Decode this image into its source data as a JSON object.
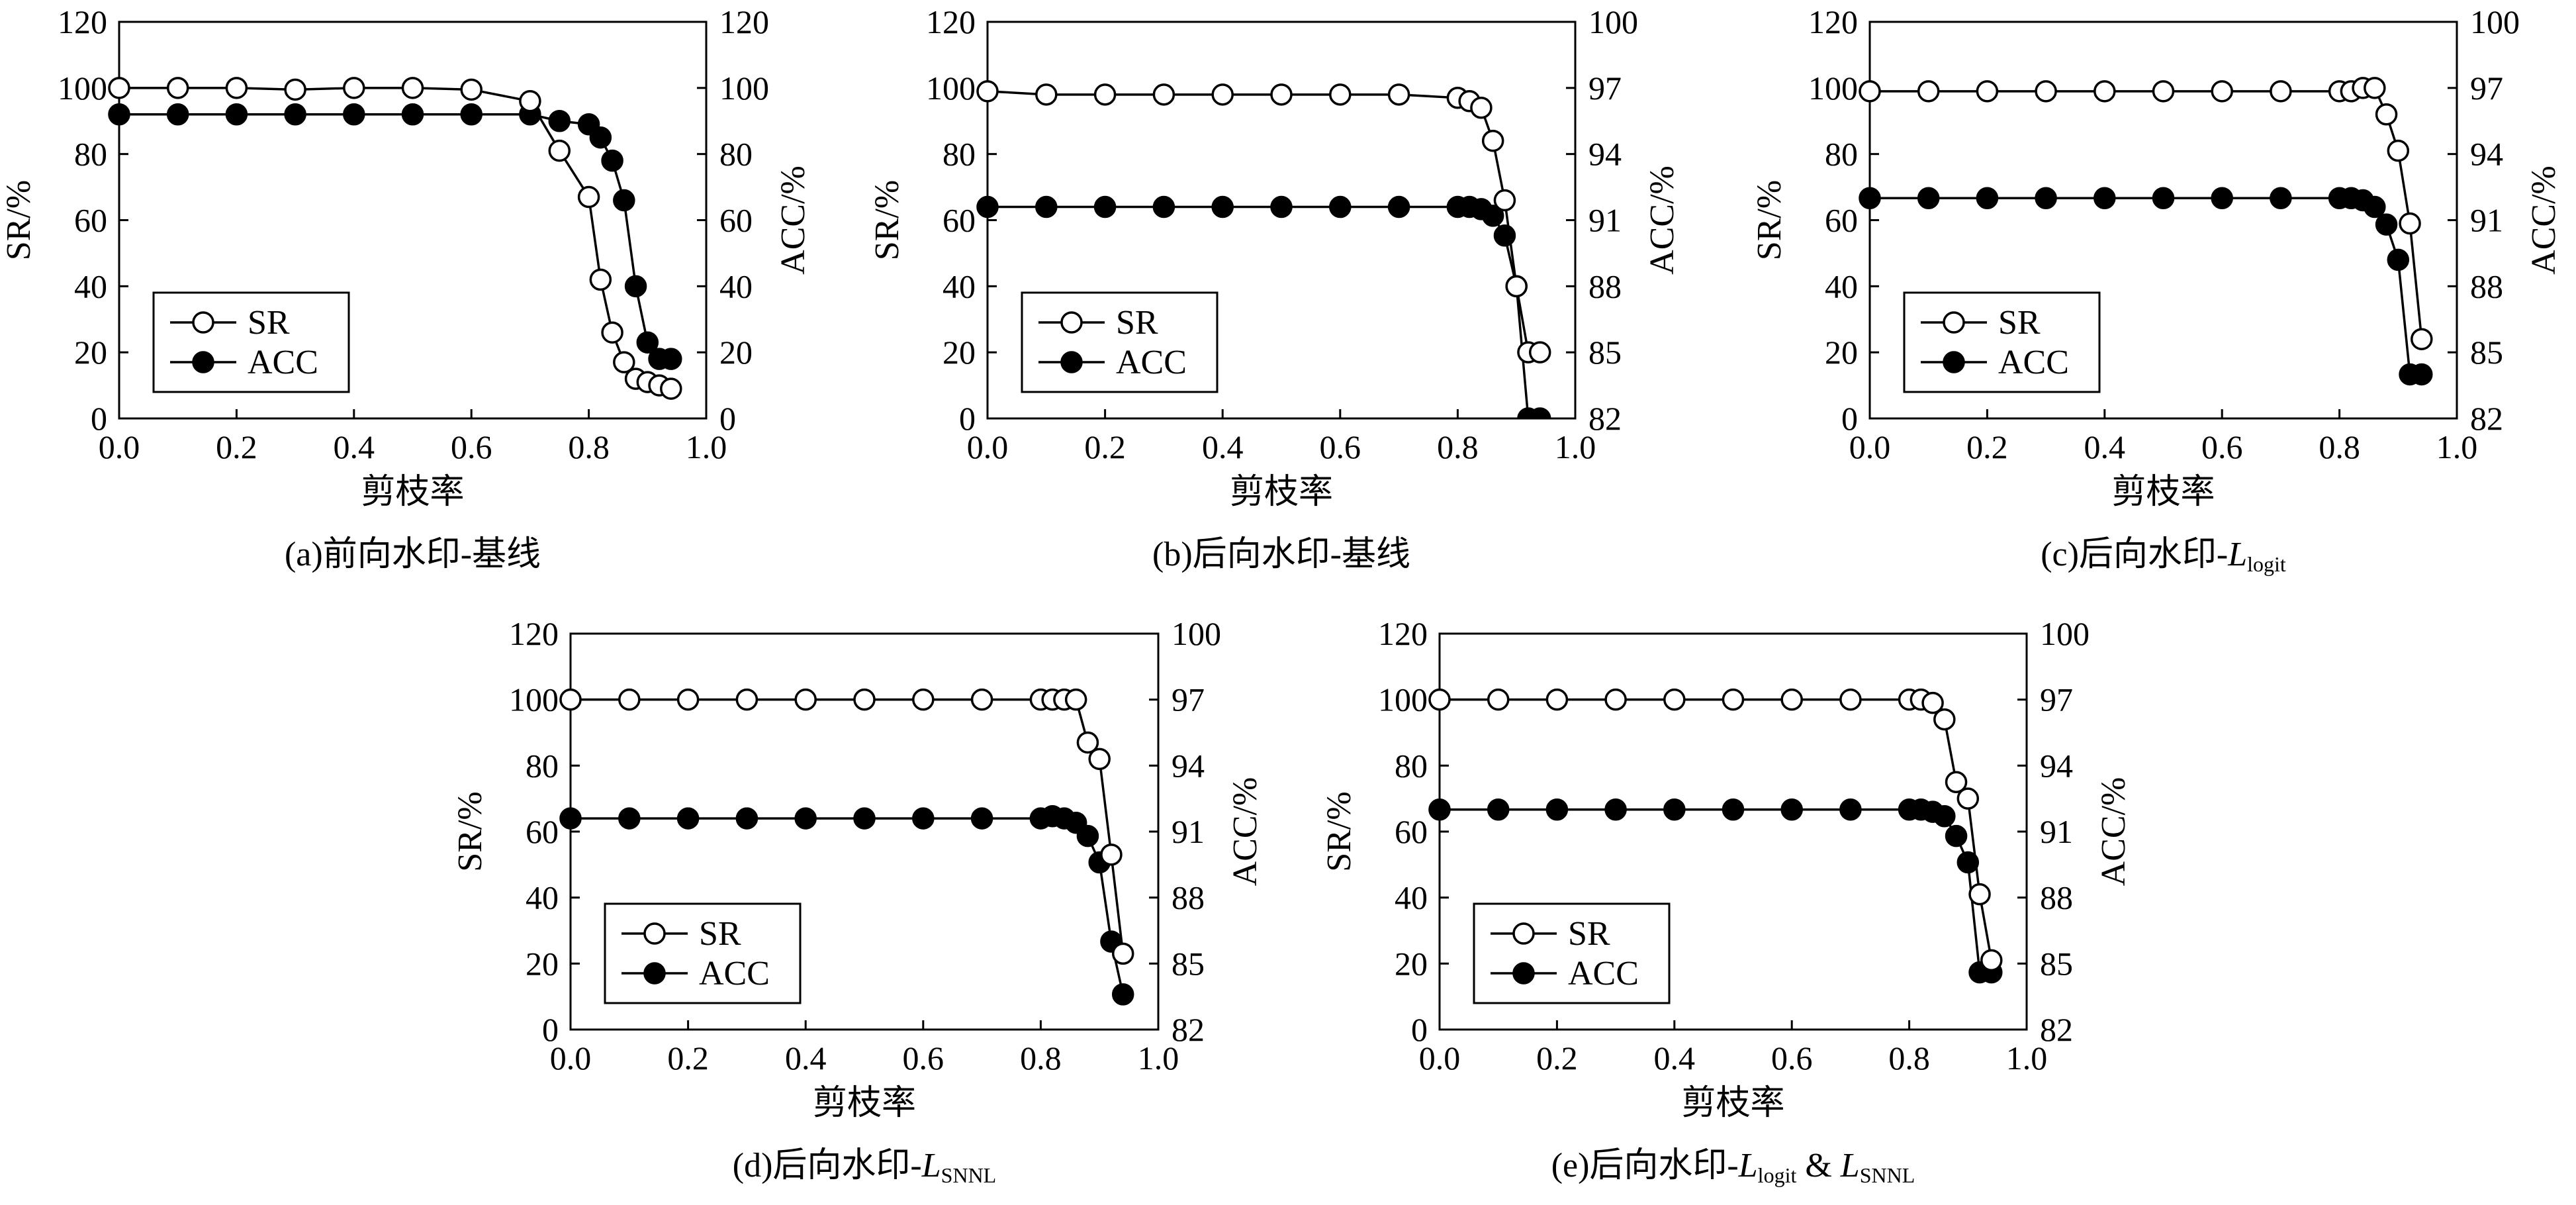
{
  "chart_data": [
    {
      "type": "line",
      "caption": {
        "main": "(a)前向水印-基线",
        "italic": "",
        "sub": "",
        "italic2": "",
        "sub2": ""
      },
      "xlabel": "剪枝率",
      "ylabel_left": "SR/%",
      "ylabel_right": "ACC/%",
      "xlim": [
        0.0,
        1.0
      ],
      "xticks": [
        "0.0",
        "0.2",
        "0.4",
        "0.6",
        "0.8",
        "1.0"
      ],
      "ylim_left": [
        0,
        120
      ],
      "yticks_left": [
        "0",
        "20",
        "40",
        "60",
        "80",
        "100",
        "120"
      ],
      "ylim_right": [
        0,
        120
      ],
      "yticks_right": [
        "0",
        "20",
        "40",
        "60",
        "80",
        "100",
        "120"
      ],
      "legend": [
        "SR",
        "ACC"
      ],
      "legend_position": "lower-left",
      "series": [
        {
          "name": "SR",
          "axis": "left",
          "marker": "open-circle",
          "x": [
            0.0,
            0.1,
            0.2,
            0.3,
            0.4,
            0.5,
            0.6,
            0.7,
            0.75,
            0.8,
            0.82,
            0.84,
            0.86,
            0.88,
            0.9,
            0.92,
            0.94
          ],
          "y": [
            100,
            100,
            100,
            99.5,
            100,
            100,
            99.5,
            96,
            81,
            67,
            42,
            26,
            17,
            12,
            11,
            10,
            9
          ]
        },
        {
          "name": "ACC",
          "axis": "right",
          "marker": "filled-circle",
          "x": [
            0.0,
            0.1,
            0.2,
            0.3,
            0.4,
            0.5,
            0.6,
            0.7,
            0.75,
            0.8,
            0.82,
            0.84,
            0.86,
            0.88,
            0.9,
            0.92,
            0.94
          ],
          "y": [
            92,
            92,
            92,
            92,
            92,
            92,
            92,
            92,
            90,
            89,
            85,
            78,
            66,
            40,
            23,
            18,
            18
          ]
        }
      ]
    },
    {
      "type": "line",
      "caption": {
        "main": "(b)后向水印-基线",
        "italic": "",
        "sub": "",
        "italic2": "",
        "sub2": ""
      },
      "xlabel": "剪枝率",
      "ylabel_left": "SR/%",
      "ylabel_right": "ACC/%",
      "xlim": [
        0.0,
        1.0
      ],
      "xticks": [
        "0.0",
        "0.2",
        "0.4",
        "0.6",
        "0.8",
        "1.0"
      ],
      "ylim_left": [
        0,
        120
      ],
      "yticks_left": [
        "0",
        "20",
        "40",
        "60",
        "80",
        "100",
        "120"
      ],
      "ylim_right": [
        82,
        100
      ],
      "yticks_right": [
        "82",
        "85",
        "88",
        "91",
        "94",
        "97",
        "100"
      ],
      "legend": [
        "SR",
        "ACC"
      ],
      "legend_position": "lower-left",
      "series": [
        {
          "name": "SR",
          "axis": "left",
          "marker": "open-circle",
          "x": [
            0.0,
            0.1,
            0.2,
            0.3,
            0.4,
            0.5,
            0.6,
            0.7,
            0.8,
            0.82,
            0.84,
            0.86,
            0.88,
            0.9,
            0.92,
            0.94
          ],
          "y": [
            99,
            98,
            98,
            98,
            98,
            98,
            98,
            98,
            97,
            96,
            94,
            84,
            66,
            40,
            20,
            20
          ]
        },
        {
          "name": "ACC",
          "axis": "right",
          "marker": "filled-circle",
          "x": [
            0.0,
            0.1,
            0.2,
            0.3,
            0.4,
            0.5,
            0.6,
            0.7,
            0.8,
            0.82,
            0.84,
            0.86,
            0.88,
            0.9,
            0.92,
            0.94
          ],
          "y": [
            91.6,
            91.6,
            91.6,
            91.6,
            91.6,
            91.6,
            91.6,
            91.6,
            91.6,
            91.6,
            91.5,
            91.2,
            90.3,
            88.0,
            82.0,
            82.0
          ]
        }
      ]
    },
    {
      "type": "line",
      "caption": {
        "main": "(c)后向水印-",
        "italic": "L",
        "sub": "logit",
        "italic2": "",
        "sub2": ""
      },
      "xlabel": "剪枝率",
      "ylabel_left": "SR/%",
      "ylabel_right": "ACC/%",
      "xlim": [
        0.0,
        1.0
      ],
      "xticks": [
        "0.0",
        "0.2",
        "0.4",
        "0.6",
        "0.8",
        "1.0"
      ],
      "ylim_left": [
        0,
        120
      ],
      "yticks_left": [
        "0",
        "20",
        "40",
        "60",
        "80",
        "100",
        "120"
      ],
      "ylim_right": [
        82,
        100
      ],
      "yticks_right": [
        "82",
        "85",
        "88",
        "91",
        "94",
        "97",
        "100"
      ],
      "legend": [
        "SR",
        "ACC"
      ],
      "legend_position": "lower-left",
      "series": [
        {
          "name": "SR",
          "axis": "left",
          "marker": "open-circle",
          "x": [
            0.0,
            0.1,
            0.2,
            0.3,
            0.4,
            0.5,
            0.6,
            0.7,
            0.8,
            0.82,
            0.84,
            0.86,
            0.88,
            0.9,
            0.92,
            0.94
          ],
          "y": [
            99,
            99,
            99,
            99,
            99,
            99,
            99,
            99,
            99,
            99,
            100,
            100,
            92,
            81,
            59,
            24
          ]
        },
        {
          "name": "ACC",
          "axis": "right",
          "marker": "filled-circle",
          "x": [
            0.0,
            0.1,
            0.2,
            0.3,
            0.4,
            0.5,
            0.6,
            0.7,
            0.8,
            0.82,
            0.84,
            0.86,
            0.88,
            0.9,
            0.92,
            0.94
          ],
          "y": [
            92.0,
            92.0,
            92.0,
            92.0,
            92.0,
            92.0,
            92.0,
            92.0,
            92.0,
            92.0,
            91.9,
            91.6,
            90.8,
            89.2,
            84.0,
            84.0
          ]
        }
      ]
    },
    {
      "type": "line",
      "caption": {
        "main": "(d)后向水印-",
        "italic": "L",
        "sub": "SNNL",
        "italic2": "",
        "sub2": ""
      },
      "xlabel": "剪枝率",
      "ylabel_left": "SR/%",
      "ylabel_right": "ACC/%",
      "xlim": [
        0.0,
        1.0
      ],
      "xticks": [
        "0.0",
        "0.2",
        "0.4",
        "0.6",
        "0.8",
        "1.0"
      ],
      "ylim_left": [
        0,
        120
      ],
      "yticks_left": [
        "0",
        "20",
        "40",
        "60",
        "80",
        "100",
        "120"
      ],
      "ylim_right": [
        82,
        100
      ],
      "yticks_right": [
        "82",
        "85",
        "88",
        "91",
        "94",
        "97",
        "100"
      ],
      "legend": [
        "SR",
        "ACC"
      ],
      "legend_position": "lower-left",
      "series": [
        {
          "name": "SR",
          "axis": "left",
          "marker": "open-circle",
          "x": [
            0.0,
            0.1,
            0.2,
            0.3,
            0.4,
            0.5,
            0.6,
            0.7,
            0.8,
            0.82,
            0.84,
            0.86,
            0.88,
            0.9,
            0.92,
            0.94
          ],
          "y": [
            100,
            100,
            100,
            100,
            100,
            100,
            100,
            100,
            100,
            100,
            100,
            100,
            87,
            82,
            53,
            23
          ]
        },
        {
          "name": "ACC",
          "axis": "right",
          "marker": "filled-circle",
          "x": [
            0.0,
            0.1,
            0.2,
            0.3,
            0.4,
            0.5,
            0.6,
            0.7,
            0.8,
            0.82,
            0.84,
            0.86,
            0.88,
            0.9,
            0.92,
            0.94
          ],
          "y": [
            91.6,
            91.6,
            91.6,
            91.6,
            91.6,
            91.6,
            91.6,
            91.6,
            91.6,
            91.7,
            91.6,
            91.4,
            90.8,
            89.6,
            86.0,
            83.6
          ]
        }
      ]
    },
    {
      "type": "line",
      "caption": {
        "main": "(e)后向水印-",
        "italic": "L",
        "sub": "logit",
        "italic2": "L",
        "sub2": "SNNL"
      },
      "xlabel": "剪枝率",
      "ylabel_left": "SR/%",
      "ylabel_right": "ACC/%",
      "xlim": [
        0.0,
        1.0
      ],
      "xticks": [
        "0.0",
        "0.2",
        "0.4",
        "0.6",
        "0.8",
        "1.0"
      ],
      "ylim_left": [
        0,
        120
      ],
      "yticks_left": [
        "0",
        "20",
        "40",
        "60",
        "80",
        "100",
        "120"
      ],
      "ylim_right": [
        82,
        100
      ],
      "yticks_right": [
        "82",
        "85",
        "88",
        "91",
        "94",
        "97",
        "100"
      ],
      "legend": [
        "SR",
        "ACC"
      ],
      "legend_position": "lower-left",
      "series": [
        {
          "name": "SR",
          "axis": "left",
          "marker": "open-circle",
          "x": [
            0.0,
            0.1,
            0.2,
            0.3,
            0.4,
            0.5,
            0.6,
            0.7,
            0.8,
            0.82,
            0.84,
            0.86,
            0.88,
            0.9,
            0.92,
            0.94
          ],
          "y": [
            100,
            100,
            100,
            100,
            100,
            100,
            100,
            100,
            100,
            100,
            99,
            94,
            75,
            70,
            41,
            21
          ]
        },
        {
          "name": "ACC",
          "axis": "right",
          "marker": "filled-circle",
          "x": [
            0.0,
            0.1,
            0.2,
            0.3,
            0.4,
            0.5,
            0.6,
            0.7,
            0.8,
            0.82,
            0.84,
            0.86,
            0.88,
            0.9,
            0.92,
            0.94
          ],
          "y": [
            92.0,
            92.0,
            92.0,
            92.0,
            92.0,
            92.0,
            92.0,
            92.0,
            92.0,
            92.0,
            91.9,
            91.7,
            90.8,
            89.6,
            84.6,
            84.6
          ]
        }
      ]
    }
  ]
}
